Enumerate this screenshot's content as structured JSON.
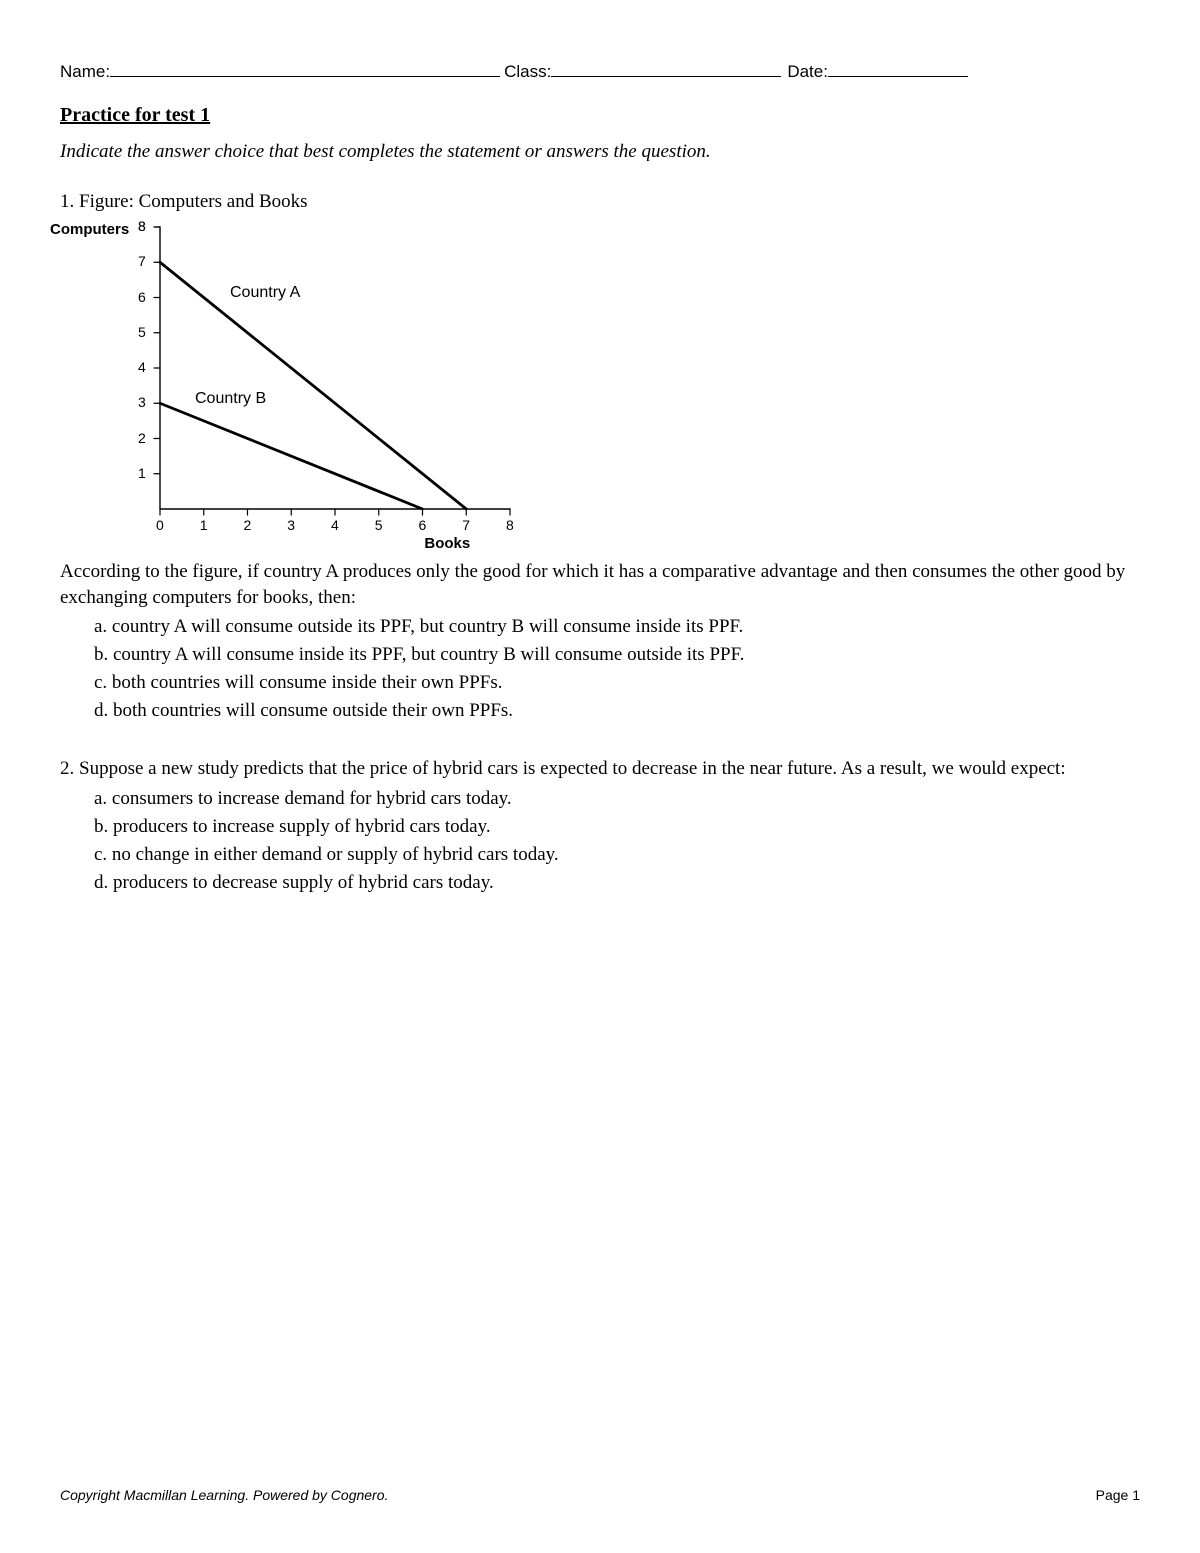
{
  "header": {
    "name_label": "Name:",
    "class_label": "Class:",
    "date_label": "Date:"
  },
  "title": "Practice for test 1",
  "instructions": "Indicate the answer choice that best completes the statement or answers the question.",
  "q1": {
    "lead": "1. Figure: Computers and Books",
    "chart": {
      "type": "line",
      "y_axis_label": "Computers",
      "x_axis_label": "Books",
      "xlim": [
        0,
        8
      ],
      "ylim": [
        0,
        8
      ],
      "xticks": [
        0,
        1,
        2,
        3,
        4,
        5,
        6,
        7,
        8
      ],
      "yticks": [
        0,
        1,
        2,
        3,
        4,
        5,
        6,
        7,
        8
      ],
      "tick_fontsize": 14,
      "label_fontsize": 15,
      "axis_color": "#000000",
      "background_color": "#ffffff",
      "line_color": "#000000",
      "line_width": 2.8,
      "tick_length": 6,
      "series": {
        "countryA": {
          "label": "Country A",
          "points": [
            [
              0,
              7
            ],
            [
              7,
              0
            ]
          ],
          "label_pos": [
            1.6,
            6.1
          ]
        },
        "countryB": {
          "label": "Country B",
          "points": [
            [
              0,
              3
            ],
            [
              6,
              0
            ]
          ],
          "label_pos": [
            0.8,
            3.1
          ]
        }
      }
    },
    "stem": "According to the figure, if country A produces only the good for which it has a comparative advantage and then consumes the other good by exchanging computers for books, then:",
    "choices": {
      "a": "a. country A will consume outside its PPF, but country B will consume inside its PPF.",
      "b": "b. country A will consume inside its PPF, but country B will consume outside its PPF.",
      "c": "c. both countries will consume inside their own PPFs.",
      "d": "d. both countries will consume outside their own PPFs."
    }
  },
  "q2": {
    "stem": "2. Suppose a new study predicts that the price of hybrid cars is expected to decrease in the near future. As a result, we would expect:",
    "choices": {
      "a": "a. consumers to increase demand for hybrid cars today.",
      "b": "b. producers to increase supply of hybrid cars today.",
      "c": "c. no change in either demand or supply of hybrid cars today.",
      "d": "d. producers to decrease supply of hybrid cars today."
    }
  },
  "footer": {
    "copyright": "Copyright Macmillan Learning. Powered by Cognero.",
    "page": "Page 1"
  }
}
